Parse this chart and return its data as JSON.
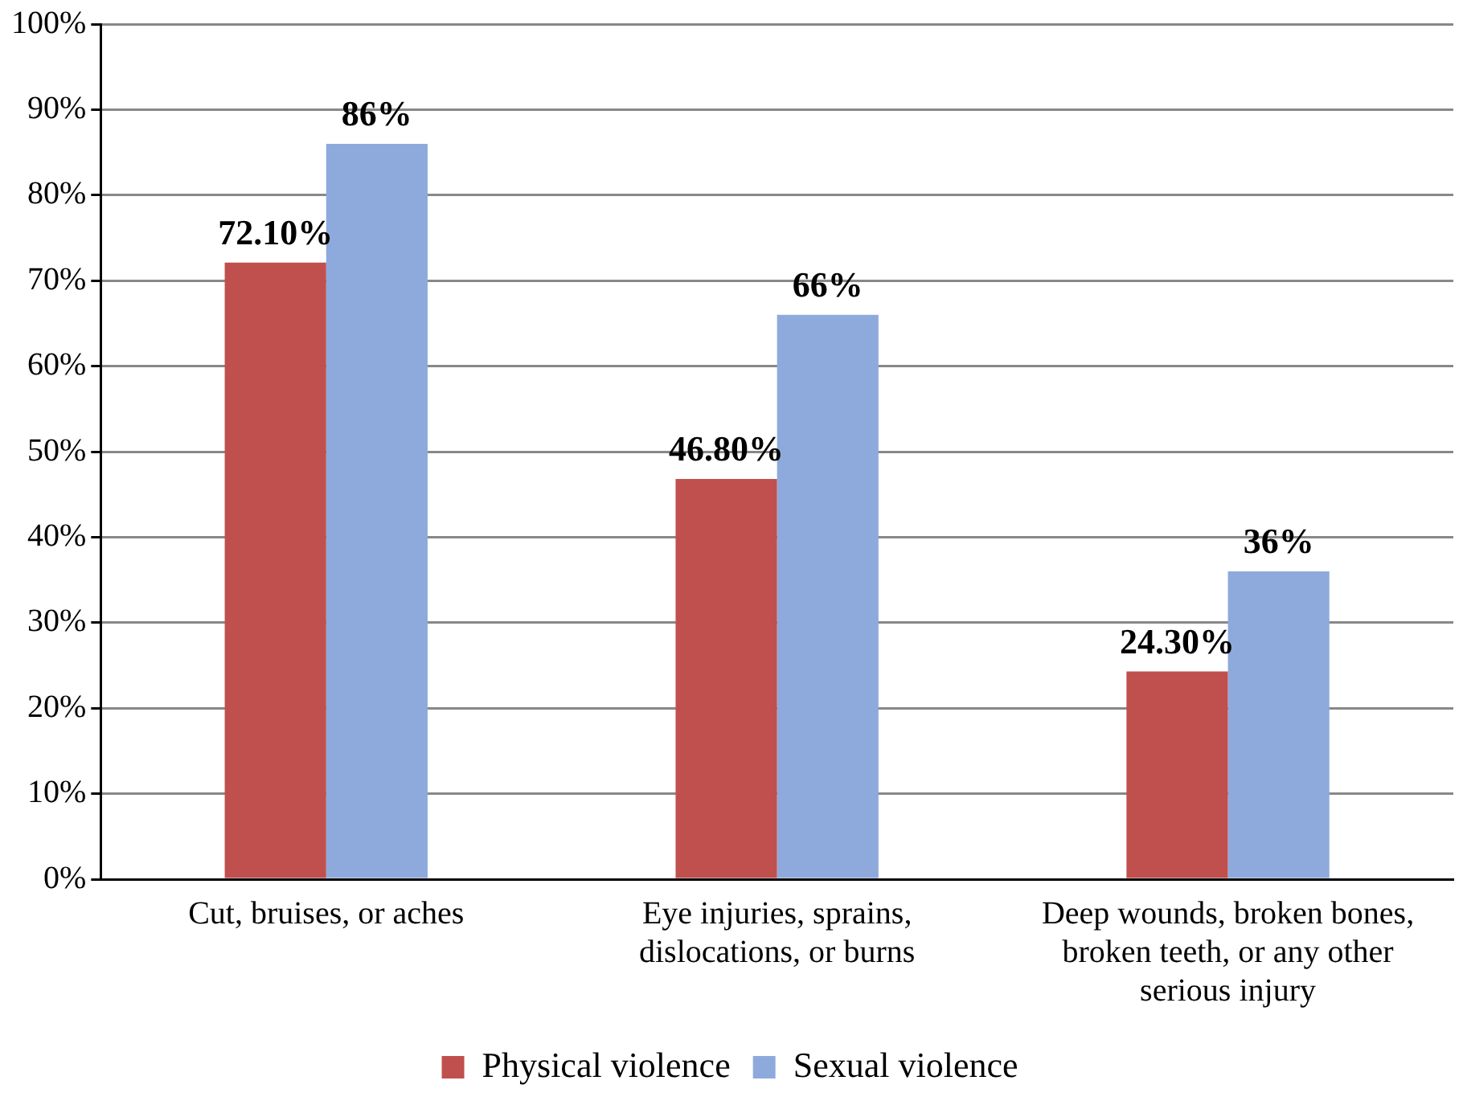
{
  "chart_data": {
    "type": "bar",
    "categories": [
      "Cut, bruises, or aches",
      "Eye injuries, sprains, dislocations, or burns",
      "Deep wounds, broken bones, broken teeth, or any other serious injury"
    ],
    "series": [
      {
        "name": "Physical violence",
        "color": "#c0504d",
        "values": [
          72.1,
          46.8,
          24.3
        ],
        "value_labels": [
          "72.10%",
          "46.80%",
          "24.30%"
        ]
      },
      {
        "name": "Sexual violence",
        "color": "#8eaadc",
        "values": [
          86,
          66,
          36
        ],
        "value_labels": [
          "86%",
          "66%",
          "36%"
        ]
      }
    ],
    "ylim": [
      0,
      100
    ],
    "yticks": [
      {
        "value": 0,
        "label": "0%"
      },
      {
        "value": 10,
        "label": "10%"
      },
      {
        "value": 20,
        "label": "20%"
      },
      {
        "value": 30,
        "label": "30%"
      },
      {
        "value": 40,
        "label": "40%"
      },
      {
        "value": 50,
        "label": "50%"
      },
      {
        "value": 60,
        "label": "60%"
      },
      {
        "value": 70,
        "label": "70%"
      },
      {
        "value": 80,
        "label": "80%"
      },
      {
        "value": 90,
        "label": "90%"
      },
      {
        "value": 100,
        "label": "100%"
      }
    ],
    "grid": "y",
    "legend": "bottom"
  }
}
